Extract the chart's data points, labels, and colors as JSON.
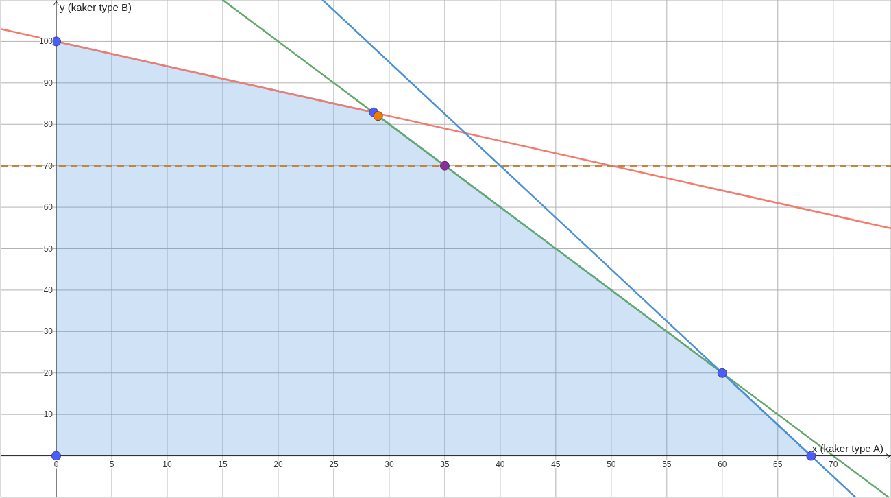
{
  "chart_data": {
    "type": "line",
    "xlabel": "x (kaker type A)",
    "ylabel": "y (kaker type B)",
    "xlim": [
      -5,
      75.2
    ],
    "ylim": [
      -10,
      110
    ],
    "xticks": [
      0,
      5,
      10,
      15,
      20,
      25,
      30,
      35,
      40,
      45,
      50,
      55,
      60,
      65,
      70
    ],
    "yticks": [
      10,
      20,
      30,
      40,
      50,
      60,
      70,
      80,
      90,
      100
    ],
    "grid": true,
    "ref_lines": [
      {
        "axis": "y",
        "value": 70,
        "color": "#c4843c",
        "line_style": "dashed"
      }
    ],
    "series": [
      {
        "x": [
          -5,
          75.2
        ],
        "values": [
          103,
          54.9
        ],
        "color": "#f47a6e"
      },
      {
        "x": [
          15,
          75
        ],
        "values": [
          110,
          -10
        ],
        "color": "#62a86b"
      },
      {
        "x": [
          24,
          72
        ],
        "values": [
          110,
          -10
        ],
        "color": "#4a90d9"
      },
      {
        "type": "area",
        "x": [
          0,
          28.6,
          60,
          68
        ],
        "values": [
          100,
          82.9,
          20,
          0
        ],
        "color": "#4a90d9"
      },
      {
        "type": "scatter",
        "x": [
          0,
          0,
          28.6,
          60,
          68
        ],
        "values": [
          0,
          100,
          82.9,
          20,
          0
        ],
        "color": "#4d5cff",
        "marker": "circle"
      },
      {
        "type": "scatter",
        "x": [
          29
        ],
        "values": [
          82
        ],
        "color": "#f07a00",
        "marker": "circle"
      },
      {
        "type": "scatter",
        "x": [
          35
        ],
        "values": [
          70
        ],
        "color": "#8e2da0",
        "marker": "circle"
      }
    ]
  }
}
